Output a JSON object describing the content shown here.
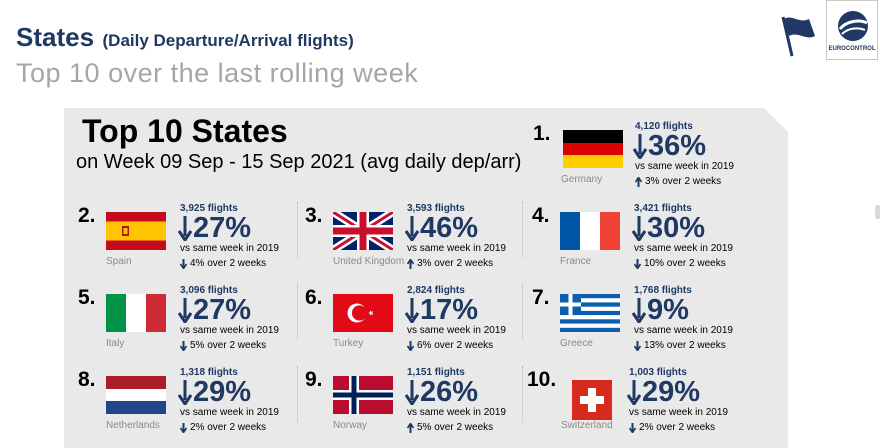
{
  "header": {
    "title": "States",
    "title_note": "(Daily Departure/Arrival flights)",
    "subtitle": "Top 10 over the last rolling week",
    "logo_text": "EUROCONTROL"
  },
  "panel": {
    "title": "Top 10 States",
    "subtitle": "on Week 09 Sep - 15 Sep 2021 (avg daily dep/arr)"
  },
  "colors": {
    "navy": "#1f3864",
    "panel_bg": "#e9e9e9",
    "subtitle_gray": "#a6a6a6"
  },
  "entries": [
    {
      "rank": "1.",
      "country": "Germany",
      "flights": "4,120 flights",
      "pct": "36%",
      "direction": "down",
      "vs": "vs same week in 2019",
      "two_week_direction": "up",
      "two_week": "3% over 2 weeks",
      "flag_icon": "germany-flag-icon"
    },
    {
      "rank": "2.",
      "country": "Spain",
      "flights": "3,925 flights",
      "pct": "27%",
      "direction": "down",
      "vs": "vs same week in 2019",
      "two_week_direction": "down",
      "two_week": "4% over 2 weeks",
      "flag_icon": "spain-flag-icon"
    },
    {
      "rank": "3.",
      "country": "United Kingdom",
      "flights": "3,593 flights",
      "pct": "46%",
      "direction": "down",
      "vs": "vs same week in 2019",
      "two_week_direction": "up",
      "two_week": "3% over 2 weeks",
      "flag_icon": "uk-flag-icon"
    },
    {
      "rank": "4.",
      "country": "France",
      "flights": "3,421 flights",
      "pct": "30%",
      "direction": "down",
      "vs": "vs same week in 2019",
      "two_week_direction": "down",
      "two_week": "10% over 2 weeks",
      "flag_icon": "france-flag-icon"
    },
    {
      "rank": "5.",
      "country": "Italy",
      "flights": "3,096 flights",
      "pct": "27%",
      "direction": "down",
      "vs": "vs same week in 2019",
      "two_week_direction": "down",
      "two_week": "5% over 2 weeks",
      "flag_icon": "italy-flag-icon"
    },
    {
      "rank": "6.",
      "country": "Turkey",
      "flights": "2,824 flights",
      "pct": "17%",
      "direction": "down",
      "vs": "vs same week in 2019",
      "two_week_direction": "down",
      "two_week": "6% over 2 weeks",
      "flag_icon": "turkey-flag-icon"
    },
    {
      "rank": "7.",
      "country": "Greece",
      "flights": "1,768 flights",
      "pct": "9%",
      "direction": "down",
      "vs": "vs same week in 2019",
      "two_week_direction": "down",
      "two_week": "13% over 2 weeks",
      "flag_icon": "greece-flag-icon"
    },
    {
      "rank": "8.",
      "country": "Netherlands",
      "flights": "1,318 flights",
      "pct": "29%",
      "direction": "down",
      "vs": "vs same week in 2019",
      "two_week_direction": "down",
      "two_week": "2% over 2 weeks",
      "flag_icon": "netherlands-flag-icon"
    },
    {
      "rank": "9.",
      "country": "Norway",
      "flights": "1,151 flights",
      "pct": "26%",
      "direction": "down",
      "vs": "vs same week in 2019",
      "two_week_direction": "up",
      "two_week": "5% over 2 weeks",
      "flag_icon": "norway-flag-icon"
    },
    {
      "rank": "10.",
      "country": "Switzerland",
      "flights": "1,003 flights",
      "pct": "29%",
      "direction": "down",
      "vs": "vs same week in 2019",
      "two_week_direction": "down",
      "two_week": "2% over 2 weeks",
      "flag_icon": "switzerland-flag-icon"
    }
  ]
}
